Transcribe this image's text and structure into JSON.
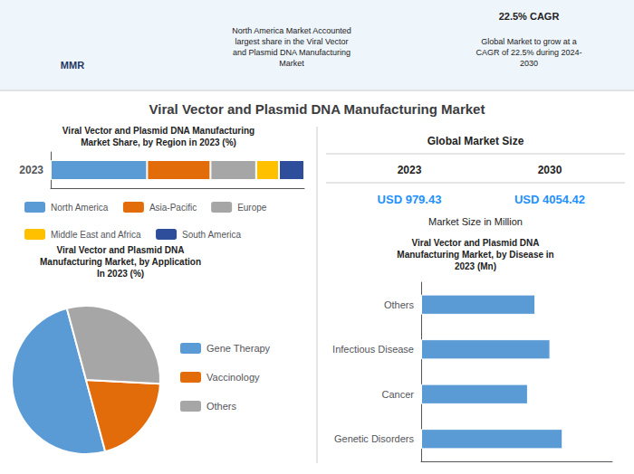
{
  "title": "Viral Vector and Plasmid DNA Manufacturing Market",
  "annotations": [
    {
      "text": "MMR",
      "color": "#1f3864"
    },
    {
      "text": "North America Market Accounted\nlargest share in the Viral Vector\nand Plasmid DNA Manufacturing\nMarket"
    },
    {
      "text": "22.5% CAGR"
    },
    {
      "text": "Global Market to grow at a\nCAGR of 22.5% during 2024-\n2030"
    },
    {
      "text": "Global Market Size"
    },
    {
      "text": "2023"
    },
    {
      "text": "2030"
    },
    {
      "text": "USD 979.43",
      "color": "#1e90ff"
    },
    {
      "text": "USD 4054.42",
      "color": "#1e90ff"
    },
    {
      "text": "Market Size in Million"
    }
  ],
  "chart_data": [
    {
      "type": "bar",
      "title": "Viral Vector and Plasmid DNA Manufacturing\nMarket Share, by Region in 2023 (%)",
      "orientation": "horizontal",
      "stacked": true,
      "categories": [
        "2023"
      ],
      "series": [
        {
          "name": "North America",
          "color": "#5b9bd5",
          "values": [
            38
          ]
        },
        {
          "name": "Asia-Pacific",
          "color": "#e36c0a",
          "values": [
            25
          ]
        },
        {
          "name": "Europe",
          "color": "#a6a6a6",
          "values": [
            18
          ]
        },
        {
          "name": "Middle East and Africa",
          "color": "#ffc000",
          "values": [
            9
          ]
        },
        {
          "name": "South America",
          "color": "#2e4d9b",
          "values": [
            10
          ]
        }
      ],
      "xlim": [
        0,
        100
      ],
      "tick_labels": "y",
      "grid": false,
      "legend": "bottom"
    },
    {
      "type": "pie",
      "title": "Viral Vector and Plasmid DNA\nManufacturing Market, by Application\nIn 2023 (%)",
      "categories": [
        "Gene Therapy",
        "Vaccinology",
        "Others"
      ],
      "values": [
        50,
        20,
        30
      ],
      "colors": [
        "#5b9bd5",
        "#e36c0a",
        "#a6a6a6"
      ],
      "legend": "right"
    },
    {
      "type": "bar",
      "title": "Viral Vector and Plasmid DNA\nManufacturing Market, by Disease in\n2023 (Mn)",
      "orientation": "horizontal",
      "categories": [
        "Genetic Disorders",
        "Cancer",
        "Infectious Disease",
        "Others"
      ],
      "values": [
        285,
        215,
        260,
        230
      ],
      "color": "#5b9bd5",
      "xlim": [
        0,
        384.75
      ],
      "tick_labels": "y",
      "grid": false
    }
  ]
}
